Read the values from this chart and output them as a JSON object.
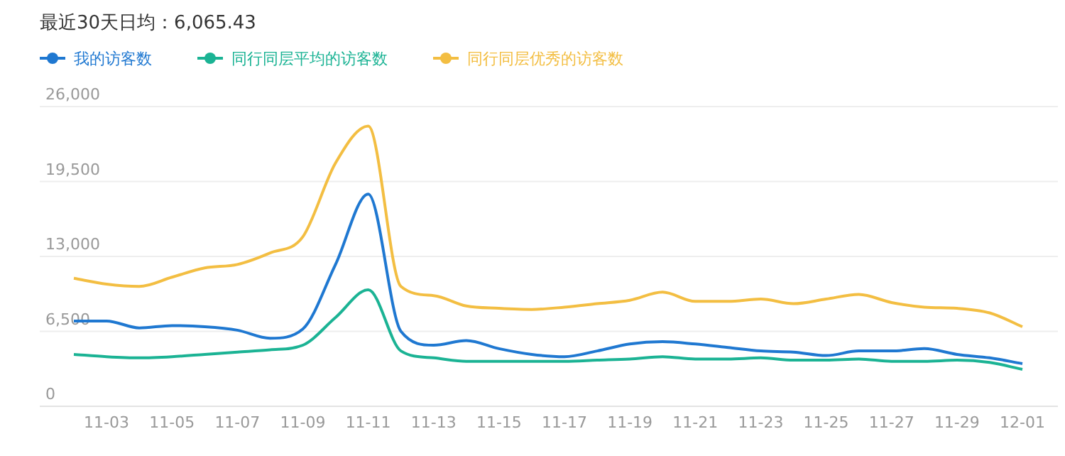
{
  "chart_data": {
    "type": "line",
    "title": "最近30天日均：6,065.43",
    "categories": [
      null,
      "11-03",
      null,
      "11-05",
      null,
      "11-07",
      null,
      "11-09",
      null,
      "11-11",
      null,
      "11-13",
      null,
      "11-15",
      null,
      "11-17",
      null,
      "11-19",
      null,
      "11-21",
      null,
      "11-23",
      null,
      "11-25",
      null,
      "11-27",
      null,
      "11-29",
      null,
      "12-01"
    ],
    "series": [
      {
        "name": "我的访客数",
        "color": "#1f78d1",
        "values": [
          7400,
          7400,
          6800,
          7000,
          6900,
          6600,
          5900,
          6700,
          12300,
          18400,
          6500,
          5300,
          5700,
          5000,
          4500,
          4300,
          4800,
          5400,
          5600,
          5400,
          5100,
          4800,
          4700,
          4400,
          4800,
          4800,
          5000,
          4500,
          4200,
          3700
        ]
      },
      {
        "name": "同行同层平均的访客数",
        "color": "#1bb394",
        "values": [
          4500,
          4300,
          4200,
          4300,
          4500,
          4700,
          4900,
          5300,
          7700,
          10100,
          4800,
          4200,
          3900,
          3900,
          3900,
          3900,
          4000,
          4100,
          4300,
          4100,
          4100,
          4200,
          4000,
          4000,
          4100,
          3900,
          3900,
          4000,
          3800,
          3200
        ]
      },
      {
        "name": "同行同层优秀的访客数",
        "color": "#f3be42",
        "values": [
          11100,
          10600,
          10400,
          11200,
          12000,
          12300,
          13300,
          14700,
          21100,
          24300,
          10400,
          9600,
          8700,
          8500,
          8400,
          8600,
          8900,
          9200,
          9900,
          9100,
          9100,
          9300,
          8900,
          9300,
          9700,
          9000,
          8600,
          8500,
          8100,
          6900
        ]
      }
    ],
    "ylim": [
      0,
      26000
    ],
    "yticks": [
      0,
      {
        "value": 6500,
        "label": "6,500"
      },
      {
        "value": 13000,
        "label": "13,000"
      },
      {
        "value": 19500,
        "label": "19,500"
      },
      {
        "value": 26000,
        "label": "26,000"
      }
    ],
    "grid": "y",
    "legend": "top left"
  }
}
